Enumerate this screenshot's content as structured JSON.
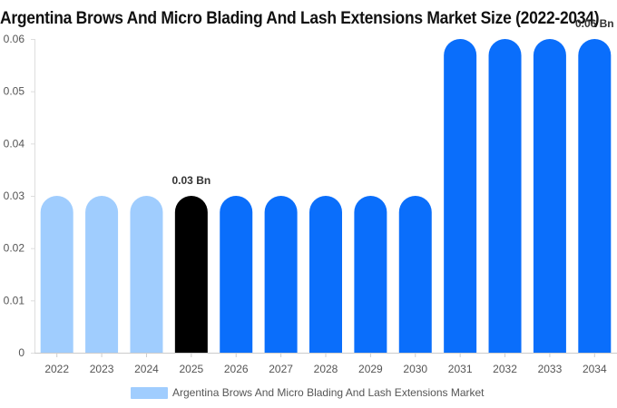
{
  "chart_data": {
    "type": "bar",
    "title": "Argentina Brows And Micro Blading And Lash Extensions Market Size (2022-2034)",
    "categories": [
      "2022",
      "2023",
      "2024",
      "2025",
      "2026",
      "2027",
      "2028",
      "2029",
      "2030",
      "2031",
      "2032",
      "2033",
      "2034"
    ],
    "series": [
      {
        "name": "Argentina Brows And Micro Blading And Lash Extensions Market",
        "values": [
          0.03,
          0.03,
          0.03,
          0.03,
          0.03,
          0.03,
          0.03,
          0.03,
          0.03,
          0.06,
          0.06,
          0.06,
          0.06
        ]
      }
    ],
    "bar_colors": [
      "#a0cdfe",
      "#a0cdfe",
      "#a0cdfe",
      "#000000",
      "#0a6efb",
      "#0a6efb",
      "#0a6efb",
      "#0a6efb",
      "#0a6efb",
      "#0a6efb",
      "#0a6efb",
      "#0a6efb",
      "#0a6efb"
    ],
    "data_labels": [
      {
        "category": "2025",
        "text": "0.03 Bn"
      },
      {
        "category": "2034",
        "text": "0.06 Bn"
      }
    ],
    "y_ticks": [
      "0",
      "0.01",
      "0.02",
      "0.03",
      "0.04",
      "0.05",
      "0.06"
    ],
    "ylim": [
      0,
      0.06
    ],
    "legend_color": "#a0cdfe",
    "legend_position": "bottom",
    "grid": false
  }
}
